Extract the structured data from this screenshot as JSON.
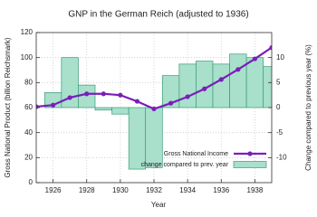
{
  "chart_data": {
    "type": "bar-line",
    "title": "GNP in the German Reich (adjusted to 1936)",
    "x_label": "Year",
    "y_label": "Gross National Product (billion Reichsmark)",
    "y2_label": "Change compared to previous year (%)",
    "xlim": [
      1925,
      1939
    ],
    "xticks": [
      1926,
      1928,
      1930,
      1932,
      1934,
      1936,
      1938
    ],
    "ylim": [
      0,
      120
    ],
    "yticks": [
      0,
      20,
      40,
      60,
      80,
      100,
      120
    ],
    "y2lim": [
      -15,
      15
    ],
    "y2ticks": [
      -10,
      -5,
      0,
      5,
      10
    ],
    "grid": true,
    "legend": "lower right",
    "series": [
      {
        "name": "Gross National Income",
        "type": "line",
        "color": "#7a1fb8",
        "x": [
          1925,
          1926,
          1927,
          1928,
          1929,
          1930,
          1931,
          1932,
          1933,
          1934,
          1935,
          1936,
          1937,
          1938,
          1939
        ],
        "values": [
          60.7,
          62,
          68,
          71,
          71,
          70,
          65,
          59,
          63.5,
          68.7,
          75,
          82.5,
          90.5,
          99,
          108
        ]
      },
      {
        "name": "change compared to prev. year",
        "type": "bar",
        "axis": "y2",
        "color": "#a8e0cc",
        "x": [
          1926,
          1927,
          1928,
          1929,
          1930,
          1931,
          1932,
          1933,
          1934,
          1935,
          1936,
          1937,
          1938,
          1939
        ],
        "values": [
          3,
          10,
          4.5,
          -0.5,
          -1.3,
          -12.3,
          -12,
          6.4,
          8.7,
          9.3,
          8.7,
          10.7,
          10,
          8.2
        ]
      }
    ]
  }
}
